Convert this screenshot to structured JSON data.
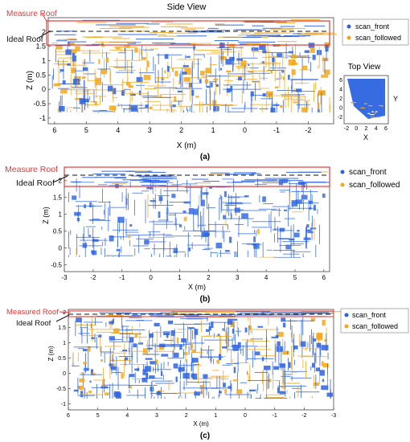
{
  "figure": {
    "panels": [
      {
        "caption": "(a)",
        "title": "Side View",
        "inset_title": "Top View",
        "annotations": {
          "measure": "Measure Roof",
          "ideal": "Ideal Roof"
        },
        "legend": [
          "scan_front",
          "scan_followed"
        ]
      },
      {
        "caption": "(b)",
        "annotations": {
          "measure": "Measure Roof",
          "ideal": "Ideal Roof"
        },
        "legend": [
          "scan_front",
          "scan_followed"
        ]
      },
      {
        "caption": "(c)",
        "annotations": {
          "measure": "Measured Roof",
          "ideal": "Ideal Roof"
        },
        "legend": [
          "scan_front",
          "scan_followed"
        ]
      }
    ]
  },
  "colors": {
    "scan_front": "#2b63e0",
    "scan_followed": "#f2a71b",
    "roof_box": "#e53935",
    "ideal_line": "#111111"
  },
  "chart_data": [
    {
      "type": "scatter",
      "panel": "(a) main",
      "title": "Side View",
      "xlabel": "X (m)",
      "ylabel": "Z (m)",
      "xlim": [
        6.2,
        -2.8
      ],
      "ylim": [
        -1.2,
        2.5
      ],
      "xticks": [
        "6",
        "5",
        "4",
        "3",
        "2",
        "1",
        "0",
        "-1",
        "-2"
      ],
      "yticks": [
        "2",
        "1.5",
        "1",
        "0.5",
        "0",
        "-0.5",
        "-1"
      ],
      "ideal_roof_z": 2.1,
      "measured_roof_band": [
        1.55,
        2.35
      ],
      "series": [
        {
          "name": "scan_front",
          "color": "#2b63e0"
        },
        {
          "name": "scan_followed",
          "color": "#f2a71b"
        }
      ]
    },
    {
      "type": "scatter",
      "panel": "(a) inset",
      "title": "Top View",
      "xlabel": "X",
      "ylabel": "Y",
      "xlim": [
        -2.5,
        6.5
      ],
      "ylim": [
        -3.5,
        7
      ],
      "xticks": [
        "-2",
        "0",
        "2",
        "4",
        "6"
      ],
      "yticks": [
        "6",
        "4",
        "2",
        "0",
        "-2"
      ]
    },
    {
      "type": "scatter",
      "panel": "(b)",
      "xlabel": "X (m)",
      "ylabel": "Z (m)",
      "xlim": [
        -3,
        6.2
      ],
      "ylim": [
        -0.7,
        2.4
      ],
      "xticks": [
        "-3",
        "-2",
        "-1",
        "0",
        "1",
        "2",
        "3",
        "4",
        "5",
        "6"
      ],
      "yticks": [
        "2",
        "1.5",
        "1",
        "0.5",
        "0",
        "-0.5"
      ],
      "ideal_roof_z": 2.0,
      "measured_roof_band": [
        1.75,
        2.25
      ],
      "series": [
        {
          "name": "scan_front",
          "color": "#2b63e0"
        },
        {
          "name": "scan_followed",
          "color": "#f2a71b"
        }
      ]
    },
    {
      "type": "scatter",
      "panel": "(c)",
      "xlabel": "X (m)",
      "ylabel": "Z (m)",
      "xlim": [
        6,
        -3
      ],
      "ylim": [
        -1.2,
        2.1
      ],
      "xticks": [
        "6",
        "5",
        "4",
        "3",
        "2",
        "1",
        "0",
        "-1",
        "-2",
        "-3"
      ],
      "yticks": [
        "2",
        "1.5",
        "1",
        "0.5",
        "0",
        "-0.5",
        "-1"
      ],
      "ideal_roof_z": 2.0,
      "measured_roof_band": [
        1.95,
        2.08
      ],
      "series": [
        {
          "name": "scan_front",
          "color": "#2b63e0"
        },
        {
          "name": "scan_followed",
          "color": "#f2a71b"
        }
      ]
    }
  ]
}
